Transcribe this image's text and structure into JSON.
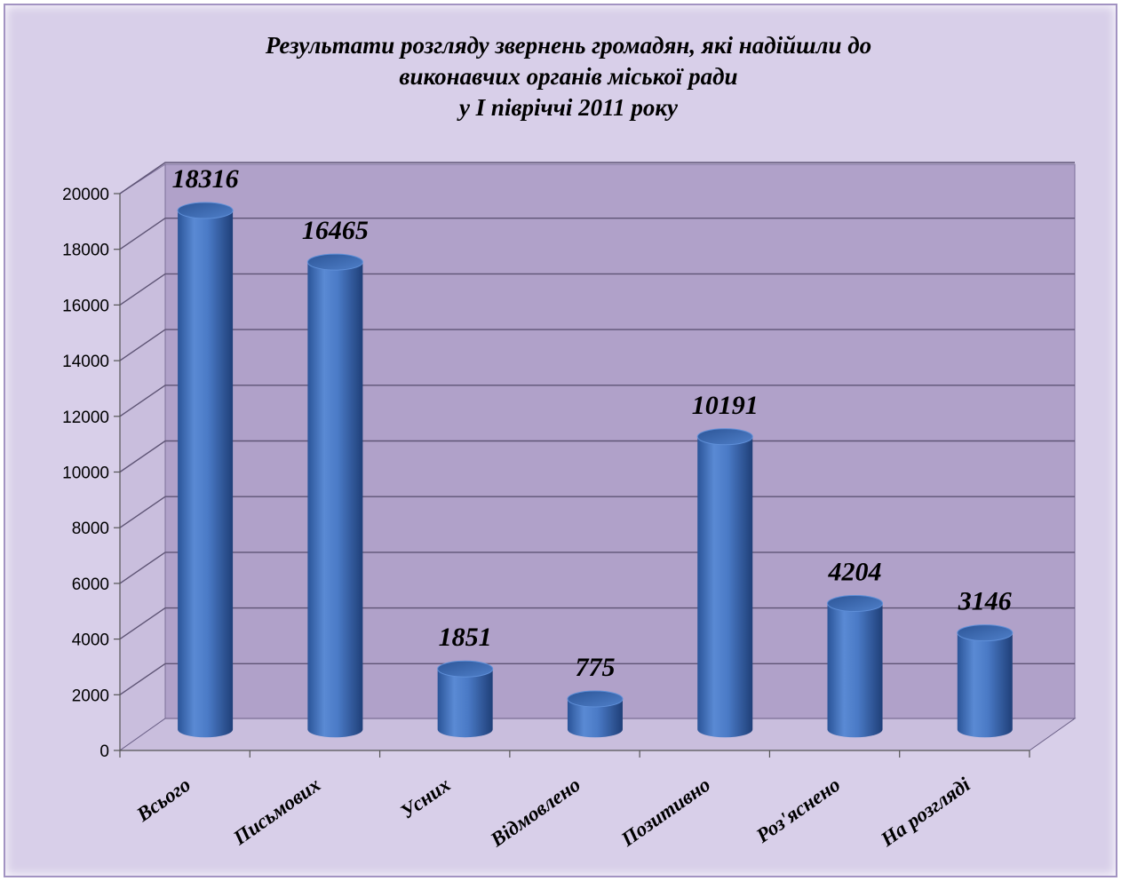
{
  "chart_data": {
    "type": "bar",
    "style": "3d-cylinder",
    "title_lines": [
      "Результати розгляду  звернень громадян, які надійшли до",
      "виконавчих органів міської ради",
      "у І півріччі 2011 року"
    ],
    "categories": [
      "Всього",
      "Письмових",
      "Усних",
      "Відмовлено",
      "Позитивно",
      "Роз'яснено",
      "На розгляді"
    ],
    "values": [
      18316,
      16465,
      1851,
      775,
      10191,
      4204,
      3146
    ],
    "value_labels": [
      "18316",
      "16465",
      "1851",
      "775",
      "10191",
      "4204",
      "3146"
    ],
    "yticks": [
      "0",
      "2000",
      "4000",
      "6000",
      "8000",
      "10000",
      "12000",
      "14000",
      "16000",
      "18000",
      "20000"
    ],
    "ylim": [
      0,
      20000
    ],
    "ystep": 2000,
    "grid": true,
    "legend": "none",
    "colors": {
      "background": "#d8cfe9",
      "plot_wall": "#b0a1c9",
      "bar": "#4a7ac6",
      "gridline": "#5e5475"
    }
  }
}
